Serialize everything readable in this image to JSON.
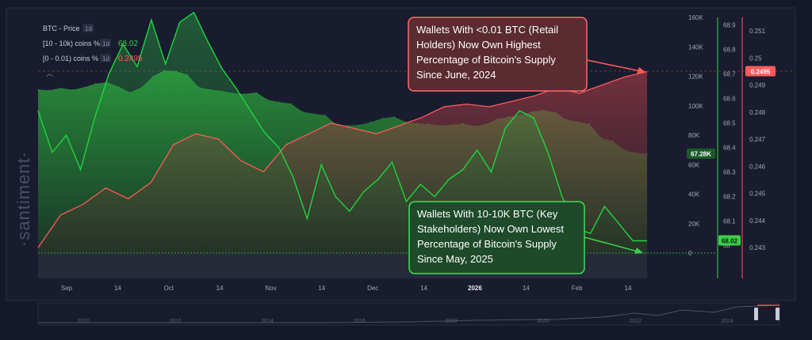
{
  "watermark": "·santiment·",
  "legend": [
    {
      "label": "BTC - Price",
      "interval": "1d",
      "value": "",
      "color": "#3a6a3a"
    },
    {
      "label": "[10 - 10k) coins %",
      "interval": "1d",
      "value": "68.02",
      "color": "#3ccf4a"
    },
    {
      "label": "[0 - 0.01) coins %",
      "interval": "1d",
      "value": "0.2495",
      "color": "#ff5a5a"
    }
  ],
  "annotations": {
    "retail": "Wallets With <0.01 BTC (Retail Holders) Now Own Highest Percentage of Bitcoin's Supply Since June, 2024",
    "stake": "Wallets With 10-10K BTC (Key Stakeholders) Now Own Lowest Percentage of Bitcoin's Supply Since May, 2025"
  },
  "badges": {
    "price": "67.28K",
    "stake": "68.02",
    "retail": "0.2495"
  },
  "timeline_years": [
    "2010",
    "2012",
    "2014",
    "2016",
    "2018",
    "2020",
    "2022",
    "2024"
  ],
  "colors": {
    "price": "#3ccf4a",
    "retail": "#ff5a5a",
    "stake": "#1fd63f",
    "background": "#15182a"
  },
  "chart_data": {
    "type": "line",
    "title": "",
    "x_ticks": [
      "Sep",
      "14",
      "Oct",
      "14",
      "Nov",
      "14",
      "Dec",
      "14",
      "2026",
      "14",
      "Feb",
      "14"
    ],
    "y_price_ticks": [
      "0",
      "20K",
      "40K",
      "60K",
      "80K",
      "100K",
      "120K",
      "140K",
      "160K"
    ],
    "y_price_range": [
      0,
      160000
    ],
    "y_stake_ticks": [
      "68",
      "68.1",
      "68.2",
      "68.3",
      "68.4",
      "68.5",
      "68.6",
      "68.7",
      "68.8",
      "68.9"
    ],
    "y_stake_range": [
      67.97,
      68.93
    ],
    "y_retail_ticks": [
      "0.243",
      "0.244",
      "0.245",
      "0.246",
      "0.247",
      "0.248",
      "0.249",
      "0.25",
      "0.251"
    ],
    "y_retail_range": [
      0.2428,
      0.2515
    ],
    "series": [
      {
        "name": "BTC - Price",
        "values": [
          111000,
          110500,
          112000,
          110800,
          112500,
          115000,
          116000,
          113000,
          109000,
          112500,
          120000,
          124000,
          123500,
          121000,
          112500,
          111000,
          110000,
          108500,
          108000,
          109000,
          104000,
          102500,
          101500,
          96000,
          94500,
          93500,
          87000,
          86500,
          87000,
          89000,
          91500,
          92500,
          89000,
          88000,
          87500,
          86500,
          87000,
          88000,
          86000,
          87500,
          91000,
          92500,
          93500,
          96000,
          97000,
          95500,
          90500,
          89000,
          87500,
          78000,
          76000,
          70000,
          68000,
          67280
        ]
      },
      {
        "name": "[10 - 10k) coins %",
        "values": [
          68.55,
          68.38,
          68.45,
          68.31,
          68.52,
          68.7,
          68.82,
          68.73,
          68.92,
          68.74,
          68.91,
          68.95,
          68.83,
          68.72,
          68.64,
          68.55,
          68.46,
          68.4,
          68.28,
          68.11,
          68.33,
          68.2,
          68.14,
          68.22,
          68.27,
          68.34,
          68.18,
          68.25,
          68.2,
          68.27,
          68.31,
          68.39,
          68.3,
          68.48,
          68.55,
          68.52,
          68.38,
          68.2,
          68.07,
          68.05,
          68.16,
          68.09,
          68.02,
          68.02
        ]
      },
      {
        "name": "[0 - 0.01) coins %",
        "values": [
          0.243,
          0.2442,
          0.2446,
          0.2452,
          0.2448,
          0.2454,
          0.2468,
          0.2472,
          0.247,
          0.2462,
          0.2458,
          0.2468,
          0.2472,
          0.2476,
          0.2474,
          0.2472,
          0.2475,
          0.2478,
          0.2482,
          0.2483,
          0.2482,
          0.2484,
          0.2486,
          0.2489,
          0.2487,
          0.249,
          0.2493,
          0.2495
        ]
      }
    ]
  }
}
